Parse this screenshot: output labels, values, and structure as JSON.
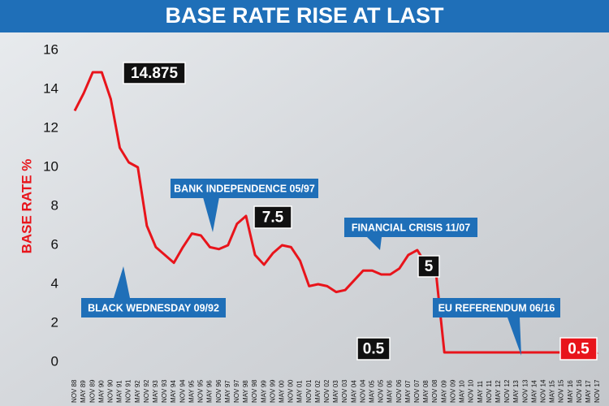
{
  "chart_data": {
    "type": "line",
    "title": "BASE RATE RISE AT LAST",
    "y_label": "BASE RATE %",
    "categories": [
      "NOV 88",
      "MAY 89",
      "NOV 89",
      "MAY 90",
      "NOV 90",
      "MAY 91",
      "NOV 91",
      "MAY 92",
      "NOV 92",
      "MAY 93",
      "NOV 93",
      "MAY 94",
      "NOV 94",
      "MAY 95",
      "NOV 95",
      "MAY 96",
      "NOV 96",
      "MAY 97",
      "NOV 97",
      "MAY 98",
      "NOV 98",
      "MAY 99",
      "NOV 99",
      "MAY 00",
      "NOV 00",
      "MAY 01",
      "NOV 01",
      "MAY 02",
      "NOV 02",
      "MAY 03",
      "NOV 03",
      "MAY 04",
      "NOV 04",
      "MAY 05",
      "NOV 05",
      "MAY 06",
      "NOV 06",
      "MAY 07",
      "NOV 07",
      "MAY 08",
      "NOV 08",
      "MAY 09",
      "NOV 09",
      "MAY 10",
      "NOV 10",
      "MAY 11",
      "NOV 11",
      "MAY 12",
      "NOV 12",
      "MAY 13",
      "NOV 13",
      "MAY 14",
      "NOV 14",
      "MAY 15",
      "NOV 15",
      "MAY 16",
      "NOV 16",
      "MAY 17",
      "NOV 17"
    ],
    "series": [
      {
        "name": "Base rate",
        "color": "#e8141b",
        "values": [
          12.9,
          13.8,
          14.875,
          14.875,
          13.5,
          11,
          10.25,
          10,
          7,
          5.9,
          5.5,
          5.1,
          5.9,
          6.6,
          6.5,
          5.9,
          5.8,
          6,
          7.1,
          7.5,
          5.5,
          5,
          5.6,
          6,
          5.9,
          5.2,
          3.9,
          4,
          3.9,
          3.6,
          3.7,
          4.2,
          4.7,
          4.7,
          4.5,
          4.5,
          4.8,
          5.5,
          5.75,
          5,
          4.9,
          0.5,
          0.5,
          0.5,
          0.5,
          0.5,
          0.5,
          0.5,
          0.5,
          0.5,
          0.5,
          0.5,
          0.5,
          0.5,
          0.5,
          0.5,
          0.25,
          0.25,
          0.5
        ]
      }
    ],
    "ylim": [
      0,
      16
    ],
    "yticks": [
      0,
      2,
      4,
      6,
      8,
      10,
      12,
      14,
      16
    ],
    "annotations": [
      {
        "text": "14.875",
        "style": "black"
      },
      {
        "text": "BANK INDEPENDENCE 05/97",
        "style": "blue"
      },
      {
        "text": "7.5",
        "style": "black"
      },
      {
        "text": "FINANCIAL CRISIS 11/07",
        "style": "blue"
      },
      {
        "text": "5",
        "style": "black"
      },
      {
        "text": "BLACK WEDNESDAY 09/92",
        "style": "blue"
      },
      {
        "text": "EU REFERENDUM 06/16",
        "style": "blue"
      },
      {
        "text": "0.5",
        "style": "black"
      },
      {
        "text": "0.5",
        "style": "red"
      }
    ]
  }
}
